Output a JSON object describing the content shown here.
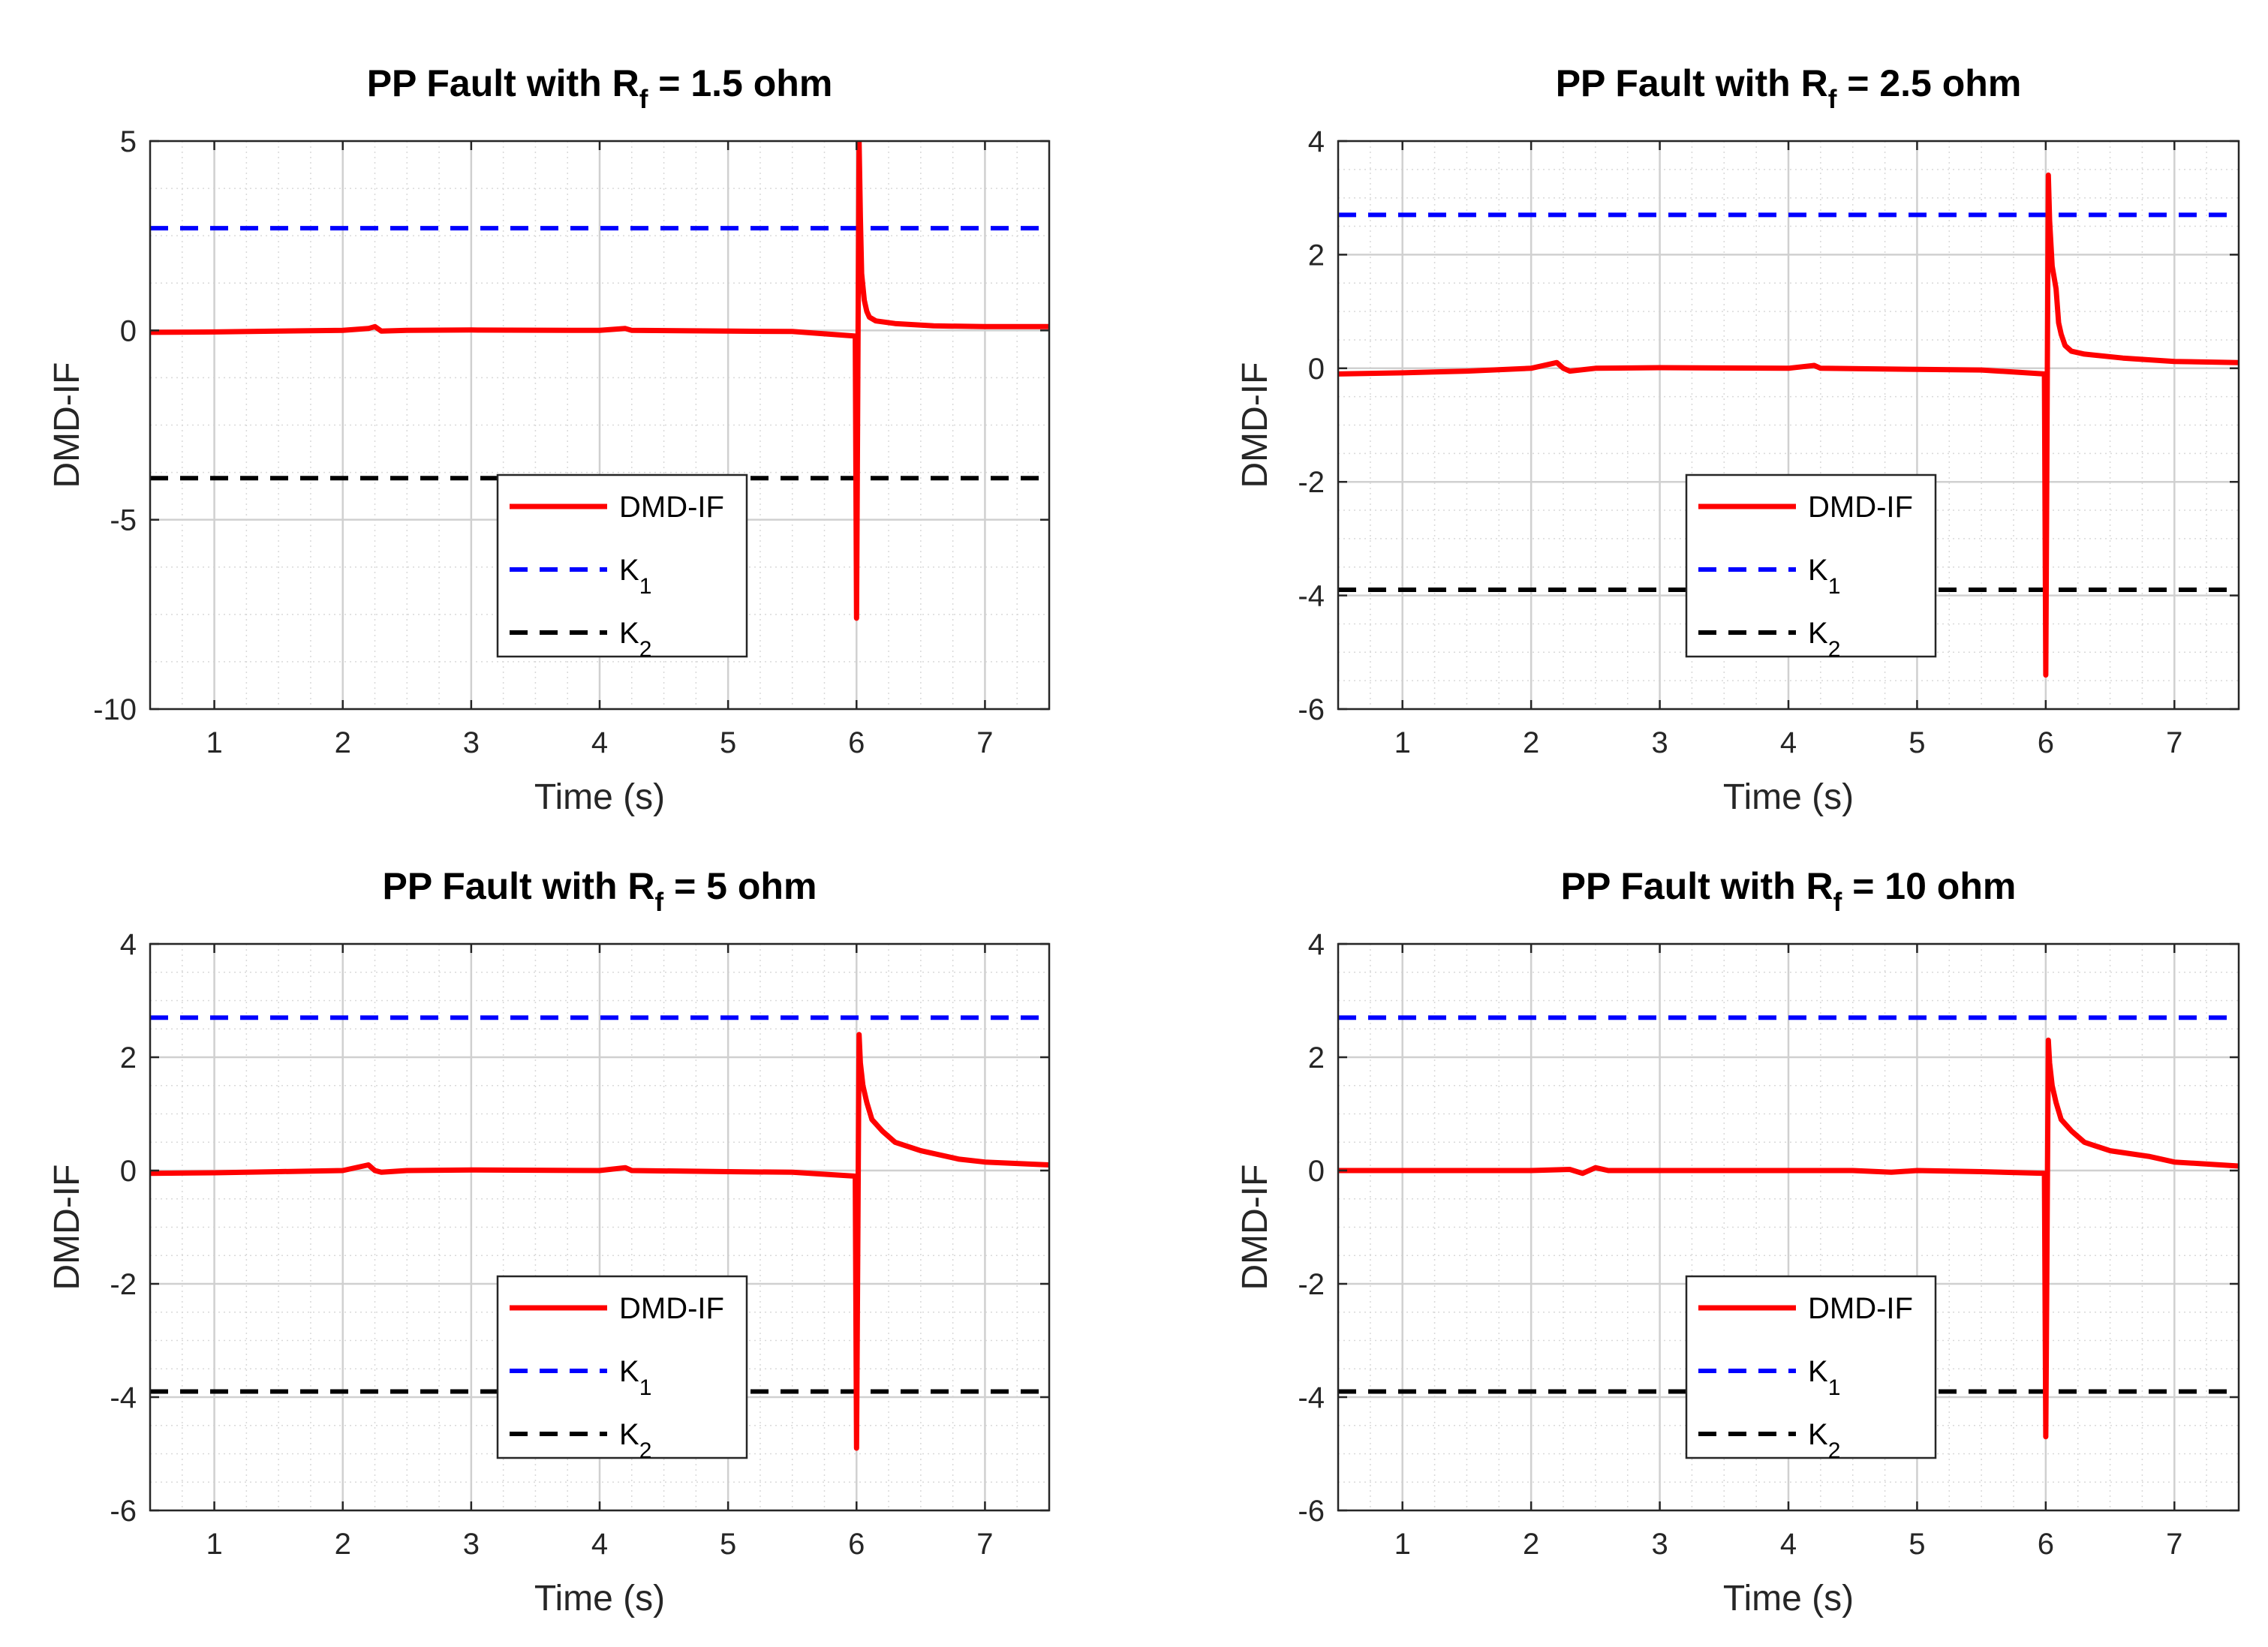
{
  "chart_data": [
    {
      "type": "line",
      "title_prefix": "PP Fault with R",
      "title_subscript": "f",
      "title_suffix": " = 1.5 ohm",
      "xlabel": "Time (s)",
      "ylabel": "DMD-IF",
      "xlim": [
        0.5,
        7.5
      ],
      "ylim": [
        -10,
        5
      ],
      "xticks": [
        1,
        2,
        3,
        4,
        5,
        6,
        7
      ],
      "yticks": [
        -10,
        -5,
        0,
        5
      ],
      "grid": true,
      "legend_position": "lower-center",
      "series": [
        {
          "name": "DMD-IF",
          "color": "#ff0000",
          "style": "solid",
          "x": [
            0.5,
            1.0,
            1.5,
            2.0,
            2.2,
            2.25,
            2.3,
            2.5,
            3.0,
            4.0,
            4.2,
            4.25,
            5.0,
            5.5,
            5.99,
            6.0,
            6.02,
            6.03,
            6.04,
            6.06,
            6.08,
            6.1,
            6.15,
            6.3,
            6.6,
            7.0,
            7.5
          ],
          "y": [
            -0.05,
            -0.04,
            -0.02,
            0.0,
            0.05,
            0.1,
            -0.02,
            0.0,
            0.01,
            0.0,
            0.05,
            0.0,
            -0.02,
            -0.03,
            -0.15,
            -7.6,
            5.0,
            3.0,
            1.5,
            0.8,
            0.5,
            0.35,
            0.25,
            0.18,
            0.12,
            0.1,
            0.1
          ]
        },
        {
          "name": "K_1",
          "color": "#0000ff",
          "style": "dashed",
          "x": [
            0.5,
            7.5
          ],
          "y": [
            2.7,
            2.7
          ]
        },
        {
          "name": "K_2",
          "color": "#000000",
          "style": "dashed",
          "x": [
            0.5,
            7.5
          ],
          "y": [
            -3.9,
            -3.9
          ]
        }
      ]
    },
    {
      "type": "line",
      "title_prefix": "PP Fault with R",
      "title_subscript": "f",
      "title_suffix": " = 2.5 ohm",
      "xlabel": "Time (s)",
      "ylabel": "DMD-IF",
      "xlim": [
        0.5,
        7.5
      ],
      "ylim": [
        -6,
        4
      ],
      "xticks": [
        1,
        2,
        3,
        4,
        5,
        6,
        7
      ],
      "yticks": [
        -6,
        -4,
        -2,
        0,
        2,
        4
      ],
      "grid": true,
      "legend_position": "lower-center",
      "series": [
        {
          "name": "DMD-IF",
          "color": "#ff0000",
          "style": "solid",
          "x": [
            0.5,
            1.0,
            1.5,
            2.0,
            2.2,
            2.25,
            2.3,
            2.5,
            3.0,
            4.0,
            4.2,
            4.25,
            5.0,
            5.5,
            5.99,
            6.0,
            6.02,
            6.03,
            6.05,
            6.08,
            6.1,
            6.12,
            6.15,
            6.2,
            6.3,
            6.6,
            7.0,
            7.5
          ],
          "y": [
            -0.1,
            -0.08,
            -0.05,
            0.0,
            0.1,
            0.0,
            -0.05,
            0.0,
            0.01,
            0.0,
            0.05,
            0.0,
            -0.02,
            -0.03,
            -0.1,
            -5.4,
            3.4,
            2.6,
            1.8,
            1.4,
            0.8,
            0.6,
            0.4,
            0.3,
            0.25,
            0.18,
            0.12,
            0.1
          ]
        },
        {
          "name": "K_1",
          "color": "#0000ff",
          "style": "dashed",
          "x": [
            0.5,
            7.5
          ],
          "y": [
            2.7,
            2.7
          ]
        },
        {
          "name": "K_2",
          "color": "#000000",
          "style": "dashed",
          "x": [
            0.5,
            7.5
          ],
          "y": [
            -3.9,
            -3.9
          ]
        }
      ]
    },
    {
      "type": "line",
      "title_prefix": "PP Fault with R",
      "title_subscript": "f",
      "title_suffix": " = 5 ohm",
      "xlabel": "Time (s)",
      "ylabel": "DMD-IF",
      "xlim": [
        0.5,
        7.5
      ],
      "ylim": [
        -6,
        4
      ],
      "xticks": [
        1,
        2,
        3,
        4,
        5,
        6,
        7
      ],
      "yticks": [
        -6,
        -4,
        -2,
        0,
        2,
        4
      ],
      "grid": true,
      "legend_position": "lower-center",
      "series": [
        {
          "name": "DMD-IF",
          "color": "#ff0000",
          "style": "solid",
          "x": [
            0.5,
            1.0,
            1.5,
            2.0,
            2.2,
            2.25,
            2.3,
            2.5,
            3.0,
            4.0,
            4.2,
            4.25,
            5.0,
            5.5,
            5.99,
            6.0,
            6.02,
            6.03,
            6.05,
            6.08,
            6.12,
            6.2,
            6.3,
            6.5,
            6.8,
            7.0,
            7.5
          ],
          "y": [
            -0.05,
            -0.04,
            -0.02,
            0.0,
            0.1,
            0.0,
            -0.03,
            0.0,
            0.01,
            0.0,
            0.05,
            0.0,
            -0.02,
            -0.03,
            -0.1,
            -4.9,
            2.4,
            1.9,
            1.5,
            1.2,
            0.9,
            0.7,
            0.5,
            0.35,
            0.2,
            0.15,
            0.1
          ]
        },
        {
          "name": "K_1",
          "color": "#0000ff",
          "style": "dashed",
          "x": [
            0.5,
            7.5
          ],
          "y": [
            2.7,
            2.7
          ]
        },
        {
          "name": "K_2",
          "color": "#000000",
          "style": "dashed",
          "x": [
            0.5,
            7.5
          ],
          "y": [
            -3.9,
            -3.9
          ]
        }
      ]
    },
    {
      "type": "line",
      "title_prefix": "PP Fault with R",
      "title_subscript": "f",
      "title_suffix": " = 10 ohm",
      "xlabel": "Time (s)",
      "ylabel": "DMD-IF",
      "xlim": [
        0.5,
        7.5
      ],
      "ylim": [
        -6,
        4
      ],
      "xticks": [
        1,
        2,
        3,
        4,
        5,
        6,
        7
      ],
      "yticks": [
        -6,
        -4,
        -2,
        0,
        2,
        4
      ],
      "grid": true,
      "legend_position": "lower-center",
      "series": [
        {
          "name": "DMD-IF",
          "color": "#ff0000",
          "style": "solid",
          "x": [
            0.5,
            1.0,
            1.5,
            2.0,
            2.3,
            2.4,
            2.5,
            2.6,
            3.0,
            4.0,
            4.5,
            4.8,
            5.0,
            5.5,
            5.99,
            6.0,
            6.02,
            6.03,
            6.05,
            6.08,
            6.12,
            6.2,
            6.3,
            6.5,
            6.8,
            7.0,
            7.5
          ],
          "y": [
            0.0,
            0.0,
            0.0,
            0.0,
            0.02,
            -0.05,
            0.05,
            0.0,
            0.0,
            0.0,
            0.0,
            -0.03,
            0.0,
            -0.02,
            -0.05,
            -4.7,
            2.3,
            1.9,
            1.5,
            1.2,
            0.9,
            0.7,
            0.5,
            0.35,
            0.25,
            0.15,
            0.08
          ]
        },
        {
          "name": "K_1",
          "color": "#0000ff",
          "style": "dashed",
          "x": [
            0.5,
            7.5
          ],
          "y": [
            2.7,
            2.7
          ]
        },
        {
          "name": "K_2",
          "color": "#000000",
          "style": "dashed",
          "x": [
            0.5,
            7.5
          ],
          "y": [
            -3.9,
            -3.9
          ]
        }
      ]
    }
  ]
}
